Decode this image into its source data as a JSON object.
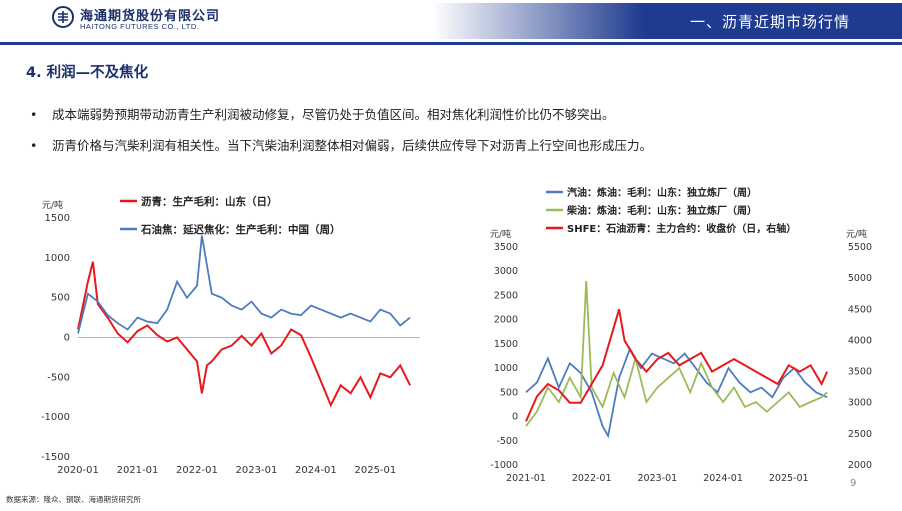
{
  "header": {
    "logo_cn": "海通期货股份有限公司",
    "logo_en": "HAITONG FUTURES CO., LTD.",
    "title": "一、沥青近期市场行情"
  },
  "section_title": "4. 利润—不及焦化",
  "bullets": [
    "成本端弱势预期带动沥青生产利润被动修复，尽管仍处于负值区间。相对焦化利润性价比仍不够突出。",
    "沥青价格与汽柴利润有相关性。当下汽柴油利润整体相对偏弱，后续供应传导下对沥青上行空间也形成压力。"
  ],
  "footer": {
    "source": "数据来源：隆众、钢联、海通期货研究所",
    "page": "9"
  },
  "colors": {
    "brand": "#1f3b8f",
    "red": "#e8191c",
    "blue": "#4f7bbf",
    "green": "#9bbb59"
  },
  "chart_data": [
    {
      "type": "line",
      "unit": "元/吨",
      "ylim": [
        -1500,
        1500
      ],
      "y_ticks": [
        "1500",
        "1000",
        "500",
        "0",
        "-500",
        "-1000",
        "-1500"
      ],
      "x_ticks": [
        "2020-01",
        "2021-01",
        "2022-01",
        "2023-01",
        "2024-01",
        "2025-01"
      ],
      "legend_position": "top",
      "series": [
        {
          "name": "沥青：生产毛利：山东（日）",
          "color": "#e8191c",
          "x": [
            "2020-01",
            "2020-03",
            "2020-04",
            "2020-05",
            "2020-07",
            "2020-09",
            "2020-11",
            "2021-01",
            "2021-03",
            "2021-05",
            "2021-07",
            "2021-09",
            "2021-11",
            "2022-01",
            "2022-02",
            "2022-03",
            "2022-04",
            "2022-06",
            "2022-08",
            "2022-10",
            "2022-12",
            "2023-02",
            "2023-04",
            "2023-06",
            "2023-08",
            "2023-10",
            "2023-12",
            "2024-02",
            "2024-04",
            "2024-06",
            "2024-08",
            "2024-10",
            "2024-12",
            "2025-02",
            "2025-04",
            "2025-06",
            "2025-08"
          ],
          "values": [
            100,
            700,
            950,
            420,
            250,
            50,
            -60,
            80,
            150,
            30,
            -50,
            0,
            -150,
            -300,
            -700,
            -350,
            -300,
            -150,
            -100,
            20,
            -100,
            50,
            -200,
            -100,
            100,
            30,
            -250,
            -550,
            -850,
            -600,
            -700,
            -500,
            -750,
            -450,
            -500,
            -350,
            -600
          ]
        },
        {
          "name": "石油焦：延迟焦化：生产毛利：中国（周）",
          "color": "#4f7bbf",
          "x": [
            "2020-01",
            "2020-03",
            "2020-05",
            "2020-07",
            "2020-09",
            "2020-11",
            "2021-01",
            "2021-03",
            "2021-05",
            "2021-07",
            "2021-09",
            "2021-11",
            "2022-01",
            "2022-02",
            "2022-04",
            "2022-06",
            "2022-08",
            "2022-10",
            "2022-12",
            "2023-02",
            "2023-04",
            "2023-06",
            "2023-08",
            "2023-10",
            "2023-12",
            "2024-02",
            "2024-04",
            "2024-06",
            "2024-08",
            "2024-10",
            "2024-12",
            "2025-02",
            "2025-04",
            "2025-06",
            "2025-08"
          ],
          "values": [
            50,
            550,
            450,
            280,
            180,
            100,
            250,
            200,
            180,
            350,
            700,
            500,
            650,
            1280,
            550,
            500,
            400,
            350,
            450,
            300,
            250,
            350,
            300,
            280,
            400,
            350,
            300,
            250,
            300,
            250,
            200,
            350,
            300,
            150,
            250
          ]
        }
      ]
    },
    {
      "type": "line",
      "unit_left": "元/吨",
      "unit_right": "元/吨",
      "ylim_left": [
        -1000,
        3500
      ],
      "ylim_right": [
        2000,
        5500
      ],
      "y_ticks_left": [
        "3500",
        "3000",
        "2500",
        "2000",
        "1500",
        "1000",
        "500",
        "0",
        "-500",
        "-1000"
      ],
      "y_ticks_right": [
        "5500",
        "5000",
        "4500",
        "4000",
        "3500",
        "3000",
        "2500",
        "2000"
      ],
      "x_ticks": [
        "2021-01",
        "2022-01",
        "2023-01",
        "2024-01",
        "2025-01"
      ],
      "legend_position": "top",
      "series": [
        {
          "name": "汽油：炼油：毛利：山东：独立炼厂（周）",
          "color": "#4f7bbf",
          "axis": "left",
          "x": [
            "2021-01",
            "2021-03",
            "2021-05",
            "2021-07",
            "2021-09",
            "2021-11",
            "2022-01",
            "2022-03",
            "2022-04",
            "2022-06",
            "2022-08",
            "2022-10",
            "2022-12",
            "2023-02",
            "2023-04",
            "2023-06",
            "2023-08",
            "2023-10",
            "2023-12",
            "2024-02",
            "2024-04",
            "2024-06",
            "2024-08",
            "2024-10",
            "2024-12",
            "2025-02",
            "2025-04",
            "2025-06",
            "2025-08"
          ],
          "values": [
            500,
            700,
            1200,
            600,
            1100,
            900,
            500,
            -200,
            -400,
            800,
            1400,
            1000,
            1300,
            1200,
            1100,
            1300,
            1000,
            700,
            500,
            1000,
            700,
            500,
            600,
            400,
            800,
            1000,
            700,
            500,
            400
          ]
        },
        {
          "name": "柴油：炼油：毛利：山东：独立炼厂（周）",
          "color": "#9bbb59",
          "axis": "left",
          "x": [
            "2021-01",
            "2021-03",
            "2021-05",
            "2021-07",
            "2021-09",
            "2021-11",
            "2021-12",
            "2022-01",
            "2022-03",
            "2022-05",
            "2022-07",
            "2022-09",
            "2022-11",
            "2023-01",
            "2023-03",
            "2023-05",
            "2023-07",
            "2023-09",
            "2023-11",
            "2024-01",
            "2024-03",
            "2024-05",
            "2024-07",
            "2024-09",
            "2024-11",
            "2025-01",
            "2025-03",
            "2025-05",
            "2025-07",
            "2025-08"
          ],
          "values": [
            -200,
            100,
            600,
            300,
            800,
            400,
            2800,
            600,
            200,
            900,
            400,
            1200,
            300,
            600,
            800,
            1000,
            500,
            1100,
            600,
            300,
            600,
            200,
            300,
            100,
            300,
            500,
            200,
            300,
            400,
            500
          ]
        },
        {
          "name": "SHFE：石油沥青：主力合约：收盘价（日，右轴）",
          "color": "#e8191c",
          "axis": "right",
          "x": [
            "2021-01",
            "2021-03",
            "2021-05",
            "2021-07",
            "2021-09",
            "2021-11",
            "2022-01",
            "2022-03",
            "2022-05",
            "2022-06",
            "2022-07",
            "2022-09",
            "2022-11",
            "2023-01",
            "2023-03",
            "2023-05",
            "2023-07",
            "2023-09",
            "2023-11",
            "2024-01",
            "2024-03",
            "2024-05",
            "2024-07",
            "2024-09",
            "2024-11",
            "2025-01",
            "2025-03",
            "2025-05",
            "2025-07",
            "2025-08"
          ],
          "values": [
            2700,
            3100,
            3300,
            3200,
            3000,
            3000,
            3300,
            3600,
            4200,
            4500,
            4000,
            3700,
            3500,
            3700,
            3800,
            3600,
            3700,
            3800,
            3500,
            3600,
            3700,
            3600,
            3500,
            3400,
            3300,
            3600,
            3500,
            3600,
            3300,
            3500
          ]
        }
      ]
    }
  ]
}
